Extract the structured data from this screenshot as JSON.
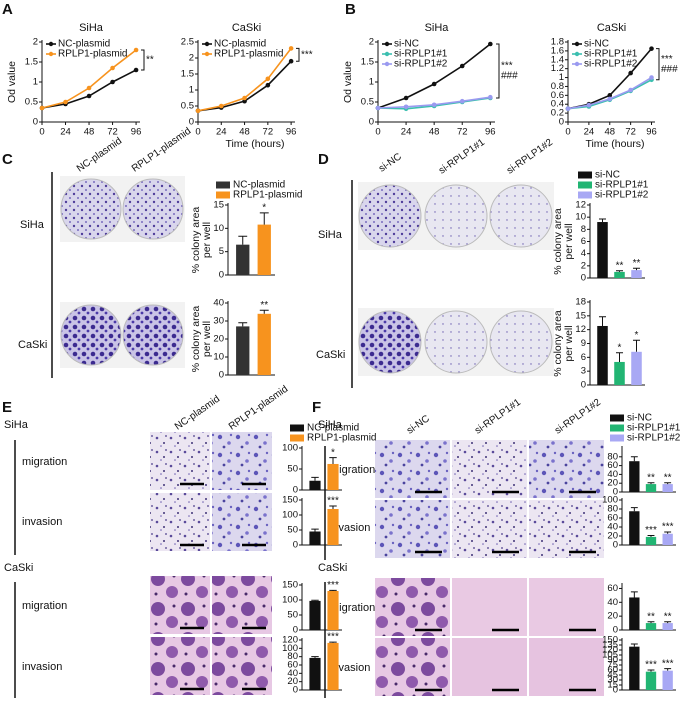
{
  "figure": {
    "panel_labels": [
      "A",
      "B",
      "C",
      "D",
      "E",
      "F"
    ],
    "columns_plasmid": [
      "NC-plasmid",
      "RPLP1-plasmid"
    ],
    "columns_si": [
      "si-NC",
      "si-RPLP1#1",
      "si-RPLP1#2"
    ],
    "rows": [
      "SiHa",
      "CaSki"
    ],
    "assays": [
      "migration",
      "invasion"
    ]
  },
  "chart_data": [
    {
      "type": "line",
      "title": "SiHa",
      "ylabel": "Od value",
      "x": [
        0,
        24,
        48,
        72,
        96
      ],
      "xlim": [
        0,
        100
      ],
      "xticks": [
        0,
        24,
        48,
        72,
        96
      ],
      "ylim": [
        0,
        2
      ],
      "yticks": [
        0,
        {
          "value": 0.5,
          "label": "0.5"
        },
        1,
        {
          "value": 1.5,
          "label": "1.5"
        },
        2
      ],
      "legend": "top-left",
      "series": [
        {
          "name": "NC-plasmid",
          "color": "#111111",
          "values": [
            0.35,
            0.45,
            0.65,
            1.0,
            1.3
          ]
        },
        {
          "name": "RPLP1-plasmid",
          "color": "#f7931e",
          "values": [
            0.35,
            0.5,
            0.85,
            1.35,
            1.8
          ]
        }
      ],
      "annotations": [
        {
          "text": "**",
          "color": "#111111"
        }
      ]
    },
    {
      "type": "line",
      "title": "CaSki",
      "xlabel": "Time (hours)",
      "x": [
        0,
        24,
        48,
        72,
        96
      ],
      "xlim": [
        0,
        100
      ],
      "xticks": [
        0,
        24,
        48,
        72,
        96
      ],
      "ylim": [
        0,
        2.5
      ],
      "yticks": [
        0,
        {
          "value": 0.5,
          "label": "0.5"
        },
        1,
        {
          "value": 1.5,
          "label": "1.5"
        },
        2,
        {
          "value": 2.5,
          "label": "2.5"
        }
      ],
      "legend": "top-left",
      "series": [
        {
          "name": "NC-plasmid",
          "color": "#111111",
          "values": [
            0.35,
            0.45,
            0.65,
            1.15,
            1.9
          ]
        },
        {
          "name": "RPLP1-plasmid",
          "color": "#f7931e",
          "values": [
            0.35,
            0.5,
            0.75,
            1.35,
            2.3
          ]
        }
      ],
      "annotations": [
        {
          "text": "***",
          "color": "#111111"
        }
      ]
    },
    {
      "type": "line",
      "title": "SiHa",
      "ylabel": "Od value",
      "x": [
        0,
        24,
        48,
        72,
        96
      ],
      "xlim": [
        0,
        100
      ],
      "xticks": [
        0,
        24,
        48,
        72,
        96
      ],
      "ylim": [
        0,
        2
      ],
      "yticks": [
        0,
        {
          "value": 0.5,
          "label": "0.5"
        },
        1,
        {
          "value": 1.5,
          "label": "1.5"
        },
        2
      ],
      "legend": "top-left",
      "series": [
        {
          "name": "si-NC",
          "color": "#111111",
          "values": [
            0.35,
            0.6,
            0.95,
            1.4,
            1.95
          ]
        },
        {
          "name": "si-RPLP1#1",
          "color": "#3cbfb0",
          "values": [
            0.35,
            0.33,
            0.4,
            0.5,
            0.6
          ]
        },
        {
          "name": "si-RPLP1#2",
          "color": "#9a9af0",
          "values": [
            0.35,
            0.38,
            0.43,
            0.52,
            0.62
          ]
        }
      ],
      "annotations": [
        {
          "text": "***",
          "color": "#3cbfb0"
        },
        {
          "text": "###",
          "color": "#8a8ae8"
        }
      ]
    },
    {
      "type": "line",
      "title": "CaSki",
      "xlabel": "Time (hours)",
      "x": [
        0,
        24,
        48,
        72,
        96
      ],
      "xlim": [
        0,
        100
      ],
      "xticks": [
        0,
        24,
        48,
        72,
        96
      ],
      "ylim": [
        0,
        1.8
      ],
      "yticks": [
        0,
        {
          "value": 0.2,
          "label": "0.2"
        },
        {
          "value": 0.4,
          "label": "0.4"
        },
        {
          "value": 0.6,
          "label": "0.6"
        },
        {
          "value": 0.8,
          "label": "0.8"
        },
        1,
        {
          "value": 1.2,
          "label": "1.2"
        },
        {
          "value": 1.4,
          "label": "1.4"
        },
        {
          "value": 1.6,
          "label": "1.6"
        },
        {
          "value": 1.8,
          "label": "1.8"
        }
      ],
      "legend": "top-left",
      "series": [
        {
          "name": "si-NC",
          "color": "#111111",
          "values": [
            0.3,
            0.4,
            0.6,
            1.1,
            1.65
          ]
        },
        {
          "name": "si-RPLP1#1",
          "color": "#3cbfb0",
          "values": [
            0.3,
            0.35,
            0.5,
            0.7,
            0.95
          ]
        },
        {
          "name": "si-RPLP1#2",
          "color": "#9a9af0",
          "values": [
            0.3,
            0.38,
            0.52,
            0.72,
            1.0
          ]
        }
      ],
      "annotations": [
        {
          "text": "***",
          "color": "#3cbfb0"
        },
        {
          "text": "###",
          "color": "#8a8ae8"
        }
      ]
    },
    {
      "type": "bar",
      "ylabel": [
        "% colony area",
        "per well"
      ],
      "legend": "above",
      "categories": [
        "NC-plasmid",
        "RPLP1-plasmid"
      ],
      "colors": [
        "#333333",
        "#f7931e"
      ],
      "values": [
        6.5,
        10.8
      ],
      "errors": [
        1.8,
        2.5
      ],
      "ylim": [
        0,
        15
      ],
      "yticks": [
        0,
        5,
        10,
        15
      ],
      "annotations": [
        null,
        "*"
      ]
    },
    {
      "type": "bar",
      "ylabel": [
        "% colony area",
        "per well"
      ],
      "colors": [
        "#333333",
        "#f7931e"
      ],
      "values": [
        27,
        34
      ],
      "errors": [
        2,
        2
      ],
      "ylim": [
        0,
        40
      ],
      "yticks": [
        0,
        10,
        20,
        30,
        40
      ],
      "annotations": [
        null,
        "**"
      ]
    },
    {
      "type": "bar",
      "ylabel": [
        "% colony area",
        "per well"
      ],
      "legend": "above",
      "categories": [
        "si-NC",
        "si-RPLP1#1",
        "si-RPLP1#2"
      ],
      "colors": [
        "#111111",
        "#22b573",
        "#a8a8f4"
      ],
      "values": [
        9.2,
        1.0,
        1.3
      ],
      "errors": [
        0.5,
        0.2,
        0.3
      ],
      "ylim": [
        0,
        12
      ],
      "yticks": [
        0,
        2,
        4,
        6,
        8,
        10,
        12
      ],
      "annotations": [
        null,
        "**",
        "**"
      ]
    },
    {
      "type": "bar",
      "ylabel": [
        "% colony area",
        "per well"
      ],
      "colors": [
        "#111111",
        "#22b573",
        "#a8a8f4"
      ],
      "values": [
        12.8,
        5,
        7.2
      ],
      "errors": [
        2,
        2,
        2.5
      ],
      "ylim": [
        0,
        18
      ],
      "yticks": [
        0,
        3,
        6,
        9,
        12,
        15,
        18
      ],
      "annotations": [
        null,
        "*",
        "*"
      ]
    },
    {
      "type": "bar",
      "legend": "above",
      "categories": [
        "NC-plasmid",
        "RPLP1-plasmid"
      ],
      "colors": [
        "#111111",
        "#f7931e"
      ],
      "values": [
        22,
        62
      ],
      "errors": [
        8,
        15
      ],
      "ylim": [
        0,
        100
      ],
      "yticks": [
        0,
        50,
        100
      ],
      "annotations": [
        null,
        "*"
      ]
    },
    {
      "type": "bar",
      "colors": [
        "#111111",
        "#f7931e"
      ],
      "values": [
        45,
        120
      ],
      "errors": [
        8,
        10
      ],
      "ylim": [
        0,
        150
      ],
      "yticks": [
        0,
        50,
        100,
        150
      ],
      "annotations": [
        null,
        "***"
      ]
    },
    {
      "type": "bar",
      "colors": [
        "#111111",
        "#f7931e"
      ],
      "values": [
        97,
        130
      ],
      "errors": [
        2,
        2
      ],
      "ylim": [
        0,
        150
      ],
      "yticks": [
        0,
        50,
        100,
        150
      ],
      "annotations": [
        null,
        "***"
      ]
    },
    {
      "type": "bar",
      "colors": [
        "#111111",
        "#f7931e"
      ],
      "values": [
        77,
        113
      ],
      "errors": [
        3,
        2
      ],
      "ylim": [
        0,
        120
      ],
      "yticks": [
        0,
        20,
        40,
        60,
        80,
        100,
        120
      ],
      "annotations": [
        null,
        "***"
      ]
    },
    {
      "type": "bar",
      "legend": "above",
      "categories": [
        "si-NC",
        "si-RPLP1#1",
        "si-RPLP1#2"
      ],
      "colors": [
        "#111111",
        "#22b573",
        "#a8a8f4"
      ],
      "values": [
        70,
        18,
        18
      ],
      "errors": [
        10,
        3,
        3
      ],
      "ylim": [
        0,
        100
      ],
      "yticks": [
        0,
        20,
        40,
        60,
        80
      ],
      "annotations": [
        null,
        "**",
        "**"
      ]
    },
    {
      "type": "bar",
      "colors": [
        "#111111",
        "#22b573",
        "#a8a8f4"
      ],
      "values": [
        75,
        18,
        25
      ],
      "errors": [
        8,
        3,
        4
      ],
      "ylim": [
        0,
        100
      ],
      "yticks": [
        0,
        20,
        40,
        60,
        80,
        100
      ],
      "annotations": [
        null,
        "***",
        "***"
      ]
    },
    {
      "type": "bar",
      "colors": [
        "#111111",
        "#22b573",
        "#a8a8f4"
      ],
      "values": [
        47,
        10,
        10
      ],
      "errors": [
        8,
        2,
        2
      ],
      "ylim": [
        0,
        65
      ],
      "yticks": [
        0,
        20,
        40,
        60
      ],
      "annotations": [
        null,
        "**",
        "**"
      ]
    },
    {
      "type": "bar",
      "colors": [
        "#111111",
        "#22b573",
        "#a8a8f4"
      ],
      "values": [
        130,
        55,
        58
      ],
      "errors": [
        8,
        5,
        6
      ],
      "ylim": [
        0,
        150
      ],
      "yticks": [
        0,
        15,
        30,
        45,
        60,
        75,
        90,
        105,
        120,
        135,
        150
      ],
      "annotations": [
        null,
        "***",
        "***"
      ]
    }
  ]
}
